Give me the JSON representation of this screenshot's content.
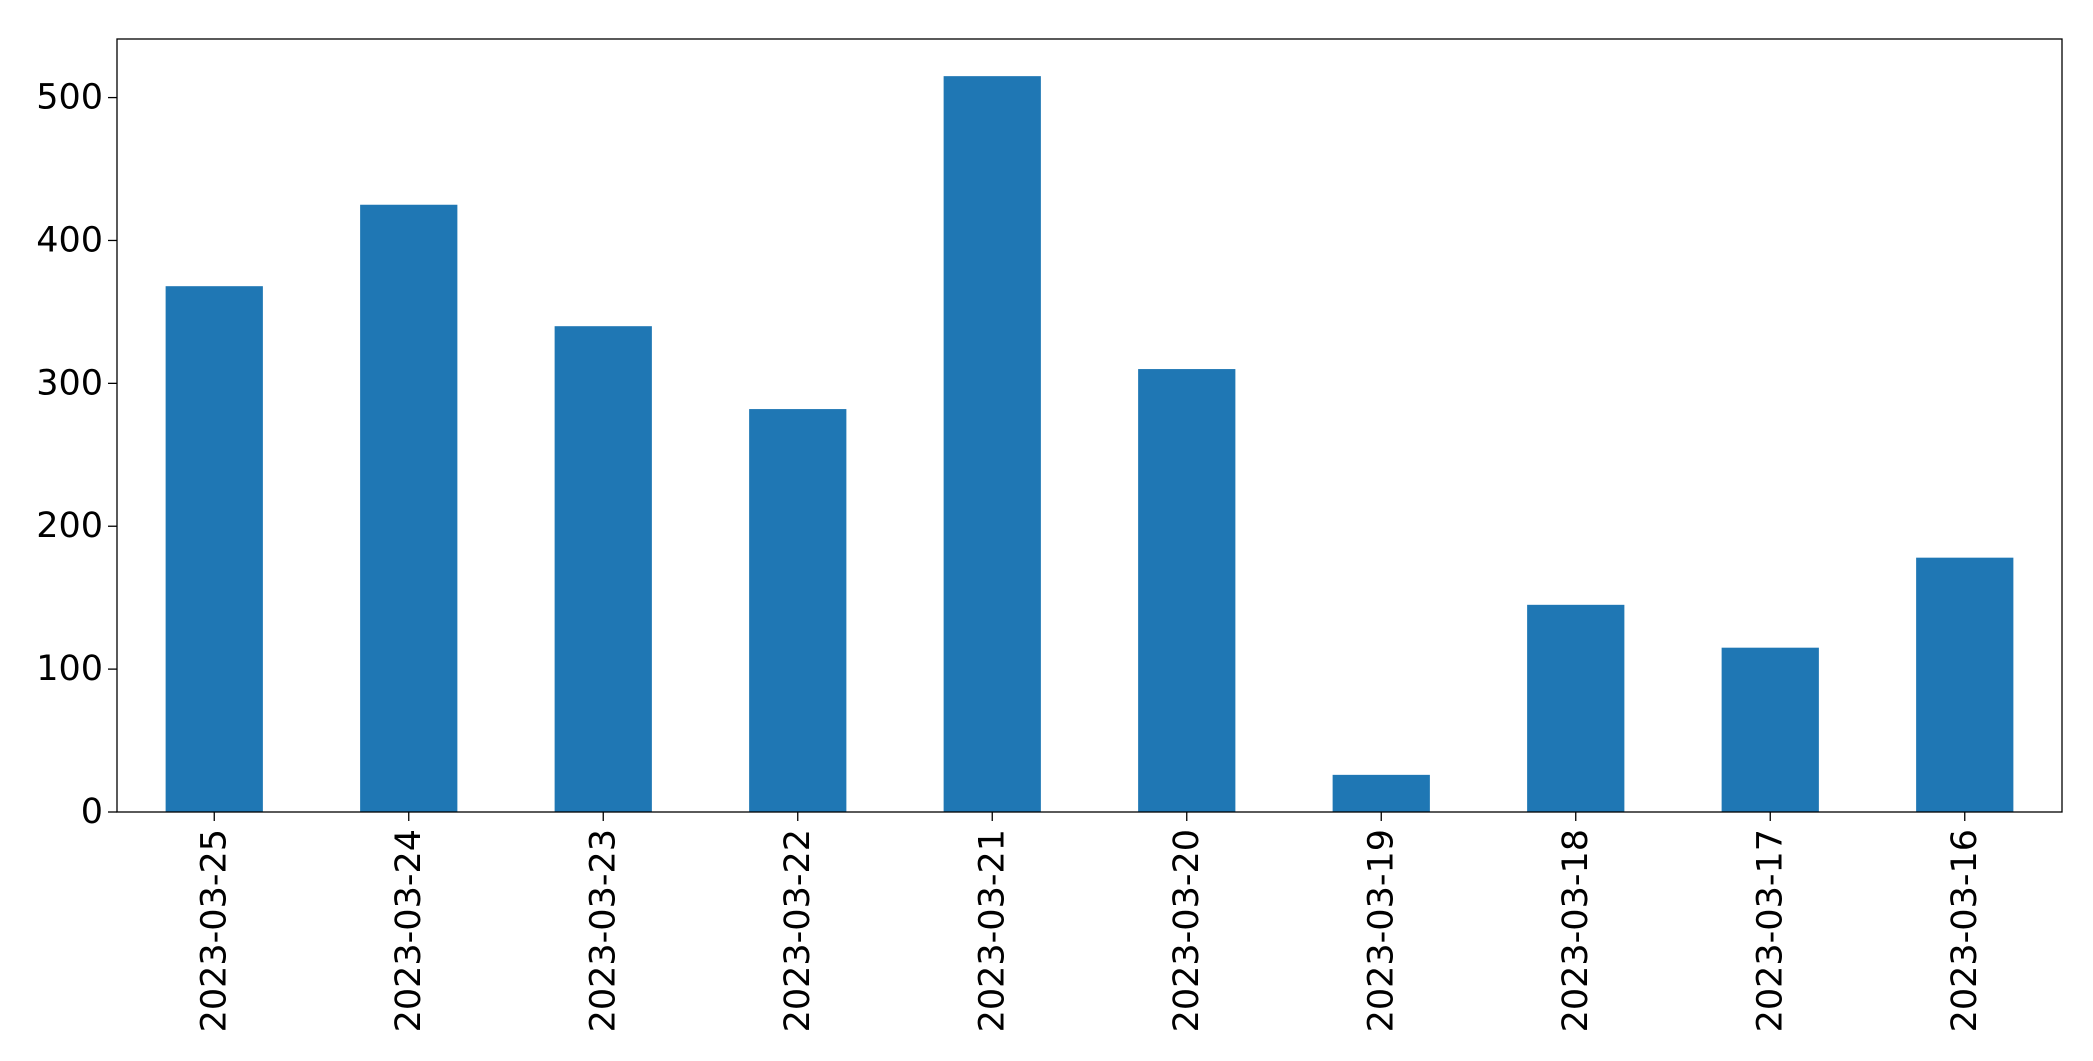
{
  "chart_data": {
    "type": "bar",
    "title": "",
    "xlabel": "",
    "ylabel": "",
    "categories": [
      "2023-03-25",
      "2023-03-24",
      "2023-03-23",
      "2023-03-22",
      "2023-03-21",
      "2023-03-20",
      "2023-03-19",
      "2023-03-18",
      "2023-03-17",
      "2023-03-16"
    ],
    "values": [
      368,
      425,
      340,
      282,
      515,
      310,
      26,
      145,
      115,
      178
    ],
    "ylim": [
      0,
      541
    ],
    "yticks": [
      0,
      100,
      200,
      300,
      400,
      500
    ],
    "ytick_labels": [
      "0",
      "100",
      "200",
      "300",
      "400",
      "500"
    ],
    "bar_color": "#1f77b4",
    "grid": false,
    "legend": "none"
  }
}
